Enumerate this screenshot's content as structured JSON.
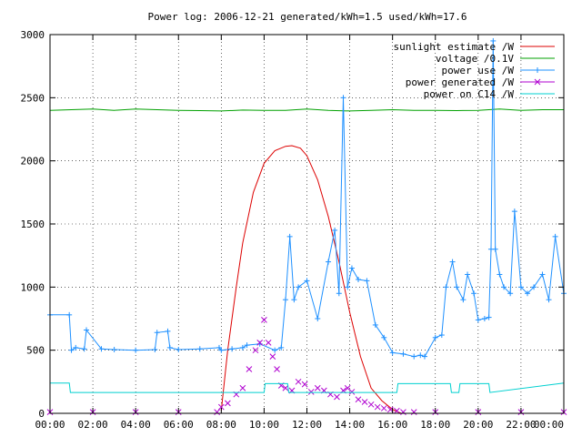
{
  "chart_data": {
    "type": "line",
    "title": "Power log: 2006-12-21 generated/kWh=1.5 used/kWh=17.6",
    "xlabel": "",
    "ylabel": "",
    "xlim": [
      0,
      24
    ],
    "ylim": [
      0,
      3000
    ],
    "x_ticks": [
      "00:00",
      "02:00",
      "04:00",
      "06:00",
      "08:00",
      "10:00",
      "12:00",
      "14:00",
      "16:00",
      "18:00",
      "20:00",
      "22:00",
      "00:00"
    ],
    "y_ticks": [
      "0",
      "500",
      "1000",
      "1500",
      "2000",
      "2500",
      "3000"
    ],
    "grid": true,
    "legend_position": "top-right",
    "series": [
      {
        "name": "sunlight estimate /W",
        "color": "#dd0000",
        "style": "line",
        "x": [
          8.0,
          8.3,
          8.7,
          9.0,
          9.5,
          10.0,
          10.5,
          11.0,
          11.3,
          11.7,
          12.0,
          12.5,
          13.0,
          13.5,
          14.0,
          14.5,
          15.0,
          15.5,
          16.0,
          16.4
        ],
        "values": [
          20,
          500,
          1000,
          1350,
          1750,
          1980,
          2080,
          2115,
          2120,
          2100,
          2040,
          1850,
          1560,
          1200,
          800,
          450,
          200,
          100,
          30,
          0
        ]
      },
      {
        "name": "voltage /0.1V",
        "color": "#00a000",
        "style": "line",
        "x": [
          0,
          1,
          2,
          3,
          4,
          5,
          6,
          7,
          8,
          9,
          10,
          11,
          12,
          13,
          14,
          15,
          16,
          17,
          18,
          19,
          20,
          21,
          22,
          23,
          24
        ],
        "values": [
          2400,
          2405,
          2410,
          2400,
          2410,
          2405,
          2400,
          2398,
          2395,
          2402,
          2400,
          2400,
          2410,
          2400,
          2395,
          2400,
          2405,
          2400,
          2400,
          2398,
          2400,
          2410,
          2400,
          2405,
          2405
        ]
      },
      {
        "name": "power use /W",
        "color": "#1e90ff",
        "style": "linepoints",
        "x": [
          0,
          0.9,
          1.0,
          1.2,
          1.6,
          1.7,
          2.4,
          3.0,
          4.0,
          4.9,
          5.0,
          5.5,
          5.6,
          6.0,
          7.0,
          7.9,
          8.0,
          8.5,
          9.0,
          9.2,
          9.8,
          10.5,
          10.8,
          11.0,
          11.2,
          11.4,
          11.6,
          12.0,
          12.5,
          13.0,
          13.3,
          13.5,
          13.7,
          13.9,
          14.1,
          14.4,
          14.8,
          15.2,
          15.6,
          16.0,
          16.5,
          17.0,
          17.3,
          17.5,
          18.0,
          18.3,
          18.5,
          18.8,
          19.0,
          19.3,
          19.5,
          19.8,
          20.0,
          20.3,
          20.5,
          20.6,
          20.7,
          20.8,
          21.0,
          21.2,
          21.5,
          21.7,
          22.0,
          22.3,
          22.6,
          23.0,
          23.3,
          23.6,
          24.0
        ],
        "values": [
          780,
          780,
          500,
          520,
          510,
          660,
          510,
          505,
          500,
          505,
          640,
          650,
          520,
          505,
          510,
          520,
          500,
          510,
          520,
          540,
          550,
          500,
          520,
          900,
          1400,
          900,
          1000,
          1050,
          750,
          1200,
          1450,
          950,
          2500,
          1000,
          1150,
          1060,
          1050,
          700,
          600,
          480,
          470,
          450,
          460,
          450,
          600,
          620,
          1000,
          1200,
          1000,
          900,
          1100,
          950,
          740,
          750,
          760,
          1300,
          2950,
          1300,
          1100,
          1000,
          950,
          1600,
          1000,
          950,
          1000,
          1100,
          900,
          1400,
          950
        ]
      },
      {
        "name": "power generated /W",
        "color": "#b000d0",
        "style": "points",
        "x": [
          0,
          2,
          4,
          6,
          7.8,
          8.0,
          8.3,
          8.7,
          9.0,
          9.3,
          9.6,
          9.8,
          10.0,
          10.2,
          10.4,
          10.6,
          10.8,
          11.0,
          11.3,
          11.6,
          11.9,
          12.2,
          12.5,
          12.8,
          13.1,
          13.4,
          13.7,
          13.9,
          14.1,
          14.4,
          14.7,
          15.0,
          15.3,
          15.6,
          15.9,
          16.2,
          16.5,
          17,
          18,
          20,
          22,
          24
        ],
        "values": [
          10,
          10,
          10,
          10,
          10,
          50,
          80,
          150,
          200,
          350,
          500,
          560,
          740,
          560,
          450,
          350,
          220,
          200,
          180,
          250,
          230,
          170,
          200,
          180,
          150,
          130,
          180,
          200,
          170,
          110,
          90,
          70,
          50,
          40,
          30,
          20,
          10,
          10,
          10,
          10,
          10,
          10
        ]
      },
      {
        "name": "power on C14 /W",
        "color": "#00d0d0",
        "style": "line",
        "x": [
          0,
          0.9,
          0.95,
          10.0,
          10.05,
          11.1,
          11.15,
          16.2,
          16.25,
          18.7,
          18.75,
          19.1,
          19.15,
          20.5,
          20.55,
          24
        ],
        "values": [
          240,
          240,
          165,
          165,
          235,
          235,
          165,
          165,
          235,
          235,
          165,
          165,
          235,
          235,
          165,
          240
        ]
      }
    ]
  }
}
